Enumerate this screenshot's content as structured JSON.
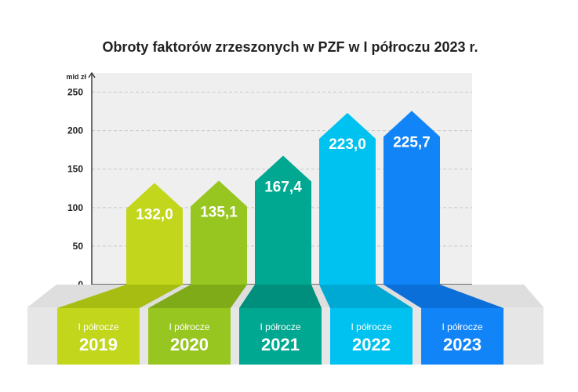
{
  "chart_data": {
    "type": "bar",
    "title": "Obroty faktorów zrzeszonych w PZF w I półroczu 2023 r.",
    "ylabel": "mld zł",
    "ylim": [
      0,
      275
    ],
    "yticks": [
      "0",
      "50",
      "100",
      "150",
      "200",
      "250"
    ],
    "grid": true,
    "categories": [
      {
        "prefix": "I półrocze",
        "year": "2019"
      },
      {
        "prefix": "I półrocze",
        "year": "2020"
      },
      {
        "prefix": "I półrocze",
        "year": "2021"
      },
      {
        "prefix": "I półrocze",
        "year": "2022"
      },
      {
        "prefix": "I półrocze",
        "year": "2023"
      }
    ],
    "values": [
      132.0,
      135.1,
      167.4,
      223.0,
      225.7
    ],
    "value_labels": [
      "132,0",
      "135,1",
      "167,4",
      "223,0",
      "225,7"
    ],
    "colors": [
      "#c2d61c",
      "#98c621",
      "#00a891",
      "#00c2f0",
      "#1185f8"
    ],
    "ribbon_colors": [
      "#a8bd12",
      "#7fab18",
      "#008f7c",
      "#00a8d4",
      "#0a6fd8"
    ]
  }
}
